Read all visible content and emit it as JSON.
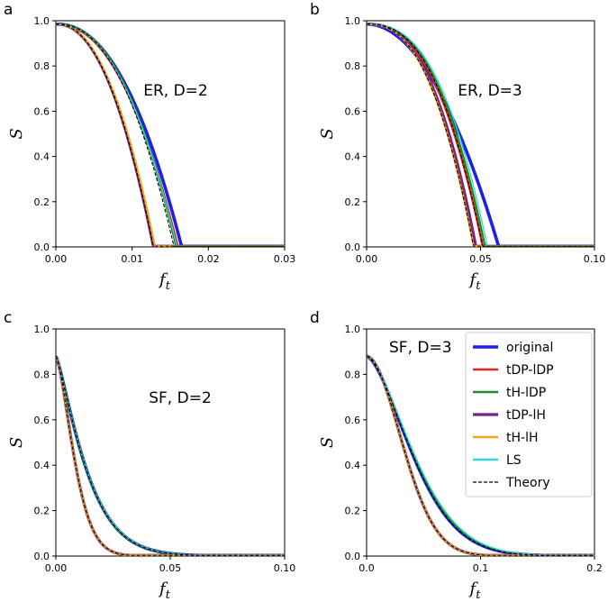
{
  "colors": {
    "original": "#1f1fe8",
    "tDP-lDP": "#e8231d",
    "tH-lDP": "#238b23",
    "tDP-lH": "#7b1f8a",
    "tH-lH": "#f2a51c",
    "LS": "#35d6e0",
    "Theory": "#000000"
  },
  "legend": {
    "entries": [
      "original",
      "tDP-lDP",
      "tH-lDP",
      "tDP-lH",
      "tH-lH",
      "LS",
      "Theory"
    ]
  },
  "chart_data": [
    {
      "type": "line",
      "panel": "a",
      "annotation": "ER, D=2",
      "xlabel": "f",
      "xlabel_sub": "t",
      "ylabel": "S",
      "xlim": [
        0,
        0.03
      ],
      "ylim": [
        0,
        1.0
      ],
      "xticks": [
        "0.00",
        "0.01",
        "0.02",
        "0.03"
      ],
      "yticks": [
        "0.0",
        "0.2",
        "0.4",
        "0.6",
        "0.8",
        "1.0"
      ],
      "curves": {
        "original": {
          "fc": 0.0165,
          "p": 2.2,
          "tail": 0.006
        },
        "tDP-lDP": {
          "fc": 0.016,
          "p": 2.2,
          "tail": 0.004
        },
        "tH-lDP": {
          "fc": 0.0158,
          "p": 2.3,
          "tail": 0.003
        },
        "tDP-lH": {
          "fc": 0.0128,
          "p": 2.2,
          "tail": 0.002
        },
        "tH-lH": {
          "fc": 0.013,
          "p": 2.2,
          "tail": 0.002
        },
        "LS": {
          "fc": 0.0159,
          "p": 2.25,
          "tail": 0.003
        },
        "Theory": [
          {
            "fc": 0.0155,
            "p": 2.3,
            "tail": 0.003
          },
          {
            "fc": 0.0128,
            "p": 2.2,
            "tail": 0.002
          }
        ]
      }
    },
    {
      "type": "line",
      "panel": "b",
      "annotation": "ER, D=3",
      "xlabel": "f",
      "xlabel_sub": "t",
      "ylabel": "S",
      "xlim": [
        0,
        0.1
      ],
      "ylim": [
        0,
        1.0
      ],
      "xticks": [
        "0.00",
        "0.05",
        "0.10"
      ],
      "yticks": [
        "0.0",
        "0.2",
        "0.4",
        "0.6",
        "0.8",
        "1.0"
      ],
      "curves": {
        "original": {
          "fc": 0.058,
          "p": 2.0,
          "tail": 0.004
        },
        "tDP-lDP": {
          "fc": 0.051,
          "p": 2.5,
          "tail": 0.002
        },
        "tH-lDP": {
          "fc": 0.052,
          "p": 2.55,
          "tail": 0.002
        },
        "tDP-lH": {
          "fc": 0.048,
          "p": 2.5,
          "tail": 0.002
        },
        "tH-lH": {
          "fc": 0.047,
          "p": 2.5,
          "tail": 0.002
        },
        "LS": {
          "fc": 0.053,
          "p": 2.6,
          "tail": 0.002
        },
        "Theory": [
          {
            "fc": 0.051,
            "p": 2.55,
            "tail": 0.002
          },
          {
            "fc": 0.047,
            "p": 2.5,
            "tail": 0.002
          }
        ]
      }
    },
    {
      "type": "line",
      "panel": "c",
      "annotation": "SF, D=2",
      "xlabel": "f",
      "xlabel_sub": "t",
      "ylabel": "S",
      "xlim": [
        0,
        0.1
      ],
      "ylim": [
        0,
        1.0
      ],
      "xticks": [
        "0.00",
        "0.05",
        "0.10"
      ],
      "yticks": [
        "0.0",
        "0.2",
        "0.4",
        "0.6",
        "0.8",
        "1.0"
      ],
      "curves": {
        "original": {
          "s0": 0.88,
          "tau": 0.0148,
          "q": 1.25
        },
        "tDP-lDP": {
          "s0": 0.88,
          "tau": 0.0098,
          "q": 1.5
        },
        "tH-lDP": {
          "s0": 0.88,
          "tau": 0.0148,
          "q": 1.25
        },
        "tDP-lH": {
          "s0": 0.88,
          "tau": 0.0098,
          "q": 1.5
        },
        "tH-lH": {
          "s0": 0.88,
          "tau": 0.0098,
          "q": 1.5
        },
        "LS": {
          "s0": 0.88,
          "tau": 0.015,
          "q": 1.25
        },
        "Theory": [
          {
            "s0": 0.88,
            "tau": 0.0148,
            "q": 1.25
          },
          {
            "s0": 0.88,
            "tau": 0.0098,
            "q": 1.5
          }
        ]
      }
    },
    {
      "type": "line",
      "panel": "d",
      "annotation": "SF, D=3",
      "xlabel": "f",
      "xlabel_sub": "t",
      "ylabel": "S",
      "xlim": [
        0,
        0.2
      ],
      "ylim": [
        0,
        1.0
      ],
      "xticks": [
        "0.0",
        "0.1",
        "0.2"
      ],
      "yticks": [
        "0.0",
        "0.2",
        "0.4",
        "0.6",
        "0.8",
        "1.0"
      ],
      "legend_position": "top-right",
      "curves": {
        "original": {
          "s0": 0.88,
          "tau": 0.05,
          "q": 1.6
        },
        "tDP-lDP": {
          "s0": 0.88,
          "tau": 0.041,
          "q": 1.9
        },
        "tH-lDP": {
          "s0": 0.88,
          "tau": 0.051,
          "q": 1.6
        },
        "tDP-lH": {
          "s0": 0.88,
          "tau": 0.041,
          "q": 1.9
        },
        "tH-lH": {
          "s0": 0.88,
          "tau": 0.041,
          "q": 1.9
        },
        "LS": {
          "s0": 0.88,
          "tau": 0.052,
          "q": 1.6
        },
        "Theory": [
          {
            "s0": 0.88,
            "tau": 0.05,
            "q": 1.6
          },
          {
            "s0": 0.88,
            "tau": 0.041,
            "q": 1.9
          }
        ]
      }
    }
  ]
}
